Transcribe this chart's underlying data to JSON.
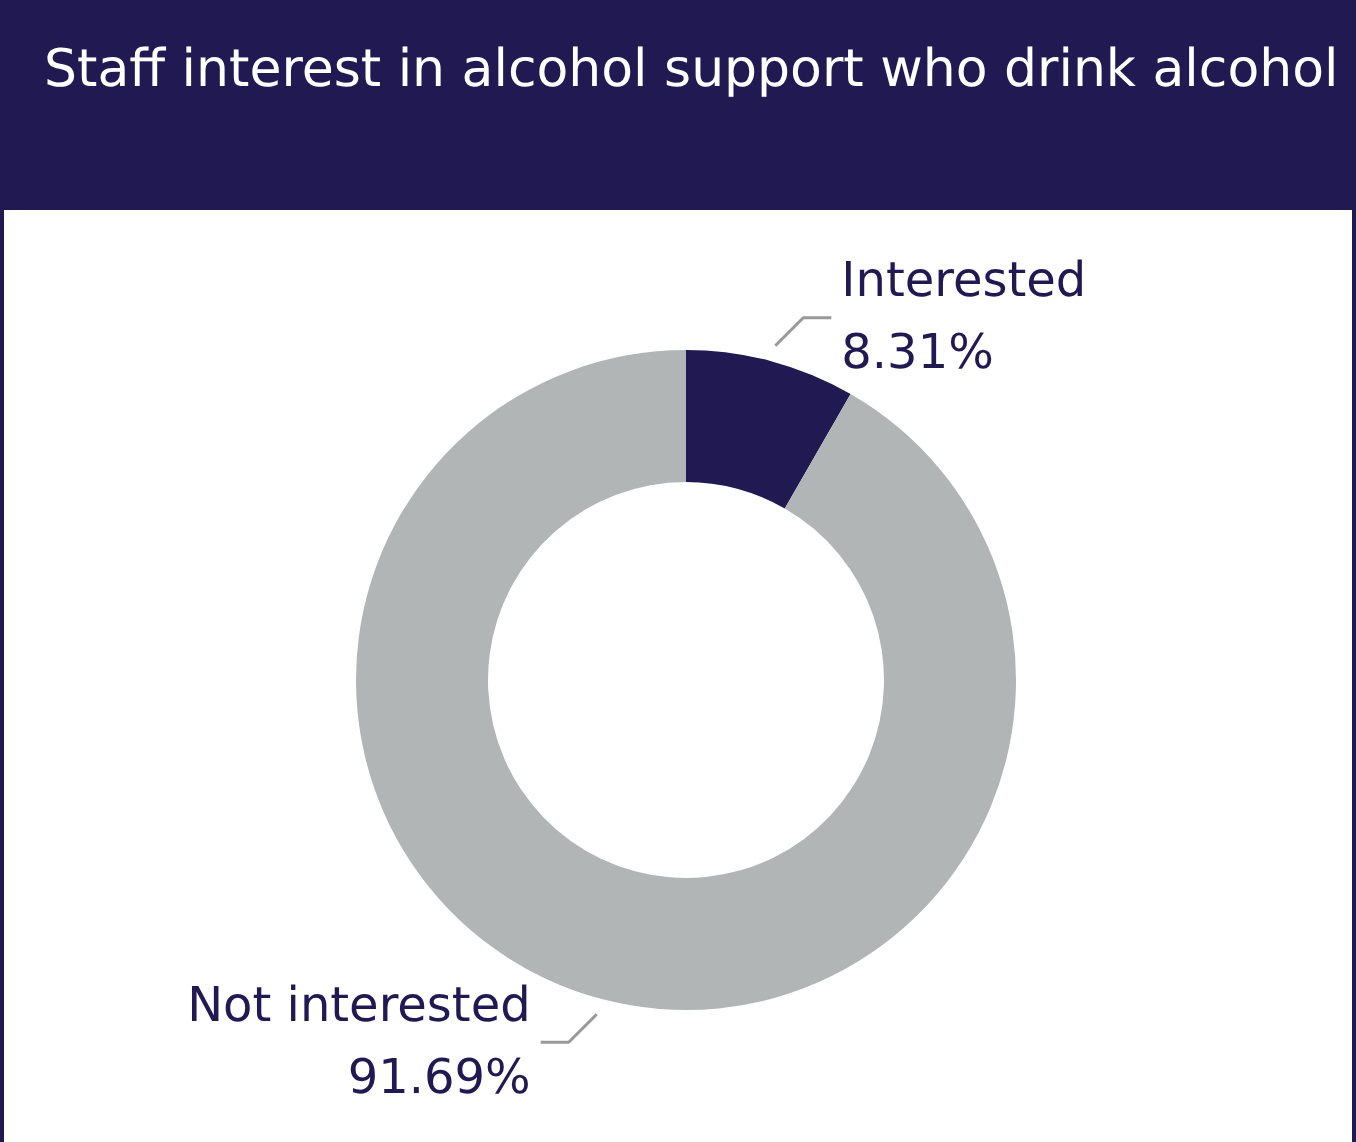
{
  "chart_data": {
    "type": "donut",
    "title": "Staff interest in alcohol support who drink alcohol",
    "categories": [
      "Interested",
      "Not interested"
    ],
    "values": [
      8.31,
      91.69
    ],
    "colors": [
      "#211a52",
      "#b1b5b6"
    ],
    "value_labels": [
      "8.31%",
      "91.69%"
    ]
  }
}
